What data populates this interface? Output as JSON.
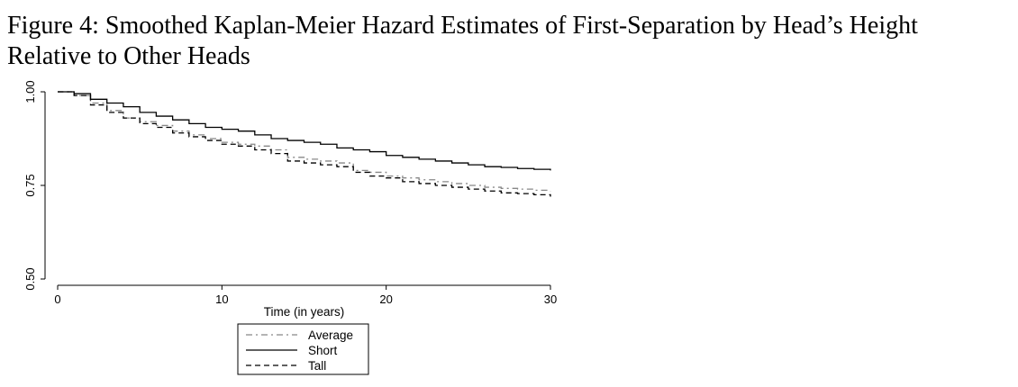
{
  "figure": {
    "title_line1": "Figure 4: Smoothed Kaplan-Meier Hazard Estimates of First-Separation by Head’s Height",
    "title_line2": "Relative to Other Heads"
  },
  "chart_data": {
    "type": "line",
    "title": "",
    "xlabel": "Time (in years)",
    "ylabel": "",
    "xlim": [
      0,
      30
    ],
    "ylim": [
      0.5,
      1.0
    ],
    "x_ticks": [
      0,
      10,
      20,
      30
    ],
    "x_tick_labels": [
      "0",
      "10",
      "20",
      "30"
    ],
    "y_ticks": [
      0.5,
      0.75,
      1.0
    ],
    "y_tick_labels": [
      "0.50",
      "0.75",
      "1.00"
    ],
    "grid": false,
    "legend_position": "bottom-center",
    "series": [
      {
        "name": "Average",
        "style": "dash-dot",
        "color": "#888888",
        "steps": [
          [
            0,
            1.0
          ],
          [
            1,
            0.99
          ],
          [
            2,
            0.97
          ],
          [
            3,
            0.95
          ],
          [
            4,
            0.93
          ],
          [
            5,
            0.92
          ],
          [
            6,
            0.91
          ],
          [
            7,
            0.895
          ],
          [
            8,
            0.885
          ],
          [
            9,
            0.875
          ],
          [
            10,
            0.865
          ],
          [
            11,
            0.86
          ],
          [
            12,
            0.855
          ],
          [
            13,
            0.845
          ],
          [
            14,
            0.825
          ],
          [
            15,
            0.82
          ],
          [
            16,
            0.815
          ],
          [
            17,
            0.81
          ],
          [
            18,
            0.79
          ],
          [
            19,
            0.785
          ],
          [
            20,
            0.775
          ],
          [
            21,
            0.77
          ],
          [
            22,
            0.765
          ],
          [
            23,
            0.76
          ],
          [
            24,
            0.755
          ],
          [
            25,
            0.75
          ],
          [
            26,
            0.745
          ],
          [
            27,
            0.742
          ],
          [
            28,
            0.74
          ],
          [
            29,
            0.737
          ],
          [
            30,
            0.735
          ]
        ],
        "end_x": 30
      },
      {
        "name": "Short",
        "style": "solid",
        "color": "#000000",
        "steps": [
          [
            0,
            1.0
          ],
          [
            1,
            0.995
          ],
          [
            2,
            0.98
          ],
          [
            3,
            0.97
          ],
          [
            4,
            0.96
          ],
          [
            5,
            0.945
          ],
          [
            6,
            0.935
          ],
          [
            7,
            0.925
          ],
          [
            8,
            0.915
          ],
          [
            9,
            0.905
          ],
          [
            10,
            0.9
          ],
          [
            11,
            0.895
          ],
          [
            12,
            0.885
          ],
          [
            13,
            0.875
          ],
          [
            14,
            0.87
          ],
          [
            15,
            0.865
          ],
          [
            16,
            0.86
          ],
          [
            17,
            0.85
          ],
          [
            18,
            0.845
          ],
          [
            19,
            0.84
          ],
          [
            20,
            0.83
          ],
          [
            21,
            0.825
          ],
          [
            22,
            0.82
          ],
          [
            23,
            0.815
          ],
          [
            24,
            0.81
          ],
          [
            25,
            0.805
          ],
          [
            26,
            0.8
          ],
          [
            27,
            0.798
          ],
          [
            28,
            0.795
          ],
          [
            29,
            0.793
          ],
          [
            30,
            0.79
          ]
        ],
        "end_x": 30
      },
      {
        "name": "Tall",
        "style": "dash",
        "color": "#000000",
        "steps": [
          [
            0,
            1.0
          ],
          [
            1,
            0.99
          ],
          [
            2,
            0.965
          ],
          [
            3,
            0.945
          ],
          [
            4,
            0.93
          ],
          [
            5,
            0.915
          ],
          [
            6,
            0.905
          ],
          [
            7,
            0.89
          ],
          [
            8,
            0.88
          ],
          [
            9,
            0.87
          ],
          [
            10,
            0.86
          ],
          [
            11,
            0.855
          ],
          [
            12,
            0.845
          ],
          [
            13,
            0.835
          ],
          [
            14,
            0.815
          ],
          [
            15,
            0.81
          ],
          [
            16,
            0.805
          ],
          [
            17,
            0.8
          ],
          [
            18,
            0.785
          ],
          [
            19,
            0.775
          ],
          [
            20,
            0.77
          ],
          [
            21,
            0.76
          ],
          [
            22,
            0.755
          ],
          [
            23,
            0.75
          ],
          [
            24,
            0.745
          ],
          [
            25,
            0.74
          ],
          [
            26,
            0.735
          ],
          [
            27,
            0.73
          ],
          [
            28,
            0.728
          ],
          [
            29,
            0.725
          ],
          [
            30,
            0.72
          ]
        ],
        "end_x": 30
      }
    ]
  }
}
